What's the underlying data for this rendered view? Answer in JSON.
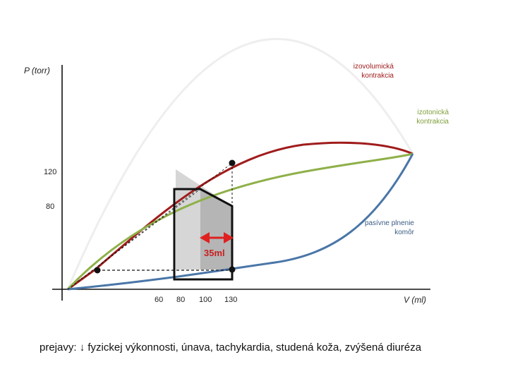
{
  "axes": {
    "y_label": "P (torr)",
    "x_label": "V (ml)"
  },
  "y_ticks": [
    "120",
    "80"
  ],
  "x_ticks": [
    "60",
    "80",
    "100",
    "130"
  ],
  "curve_labels": {
    "isovolumic": "izovolumická kontrakcia",
    "isotonic": "izotonická kontrakcia",
    "passive": "pasívne plnenie komôr"
  },
  "stroke_volume_label": "35ml",
  "footer": "prejavy: ↓ fyzickej výkonnosti, únava, tachykardia, studená koža, zvýšená diuréza",
  "colors": {
    "isovolumic": "#a01c1c",
    "isotonic": "#8fb04a",
    "passive": "#4a76a8",
    "arrow": "#e02020",
    "faded_curve": "#eeeeee"
  }
}
